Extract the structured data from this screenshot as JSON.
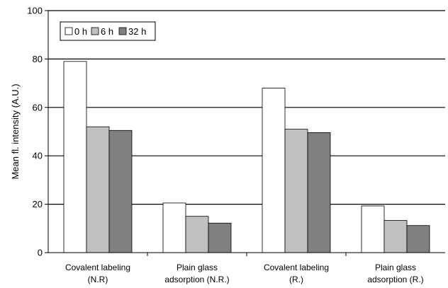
{
  "chart_data": {
    "type": "bar",
    "title": "",
    "xlabel": "",
    "ylabel": "Mean fl. intensity (A.U.)",
    "ylim": [
      0,
      100
    ],
    "yticks": [
      0,
      20,
      40,
      60,
      80,
      100
    ],
    "grid": true,
    "legend_position": "top-left",
    "categories": [
      {
        "line1": "Covalent labeling",
        "line2": "(N.R)"
      },
      {
        "line1": "Plain glass",
        "line2": "adsorption (N.R.)"
      },
      {
        "line1": "Covalent labeling",
        "line2": "(R.)"
      },
      {
        "line1": "Plain glass",
        "line2": "adsorption (R.)"
      }
    ],
    "series": [
      {
        "name": "0 h",
        "color": "#ffffff",
        "values": [
          79,
          20.5,
          68,
          19.3
        ]
      },
      {
        "name": "6 h",
        "color": "#c0c0c0",
        "values": [
          52,
          15,
          51,
          13.3
        ]
      },
      {
        "name": "32 h",
        "color": "#808080",
        "values": [
          50.5,
          12.2,
          49.6,
          11.2
        ]
      }
    ]
  }
}
